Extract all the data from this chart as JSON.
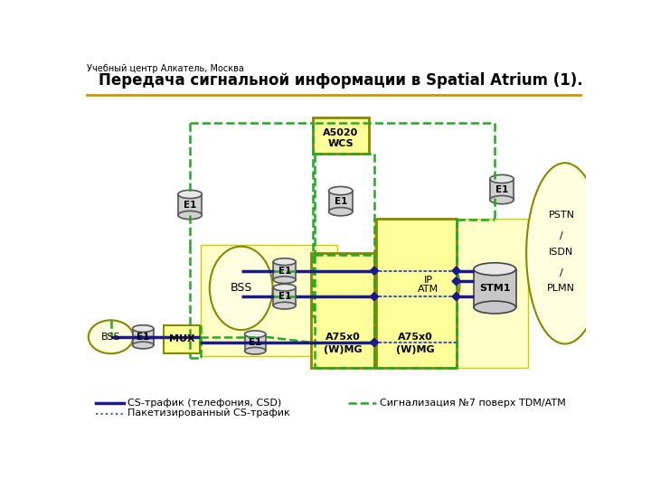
{
  "title": "Передача сигнальной информации в Spatial Atrium (1).",
  "subtitle": "Учебный центр Алкатель, Москва",
  "green_dashed_color": "#22aa22",
  "blue_solid_color": "#1a1a8c",
  "blue_dotted_color": "#4455bb",
  "legend": [
    {
      "label": "CS-трафик (телефония, CSD)",
      "style": "solid",
      "color": "#1a1a8c"
    },
    {
      "label": "Пакетизированный CS-трафик",
      "style": "dotted",
      "color": "#4455bb"
    },
    {
      "label": "Сигнализация №7 поверх TDM/ATM",
      "style": "dashed",
      "color": "#22aa22"
    }
  ]
}
